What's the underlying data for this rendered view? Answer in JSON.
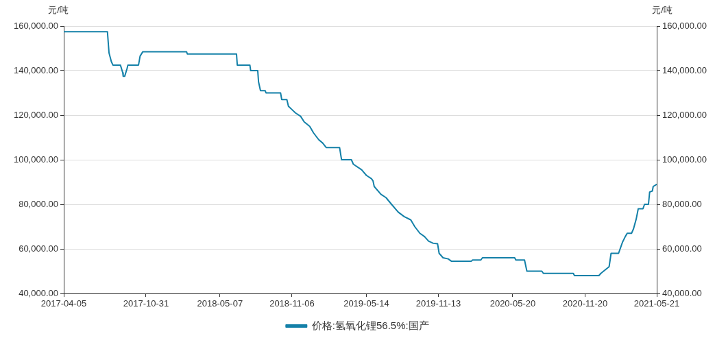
{
  "chart_data": {
    "type": "line",
    "xlabel": null,
    "ylabel": "元/吨",
    "y2label": "元/吨",
    "x": [
      "2017-04-05",
      "2017-07-25",
      "2017-07-29",
      "2017-08-04",
      "2017-08-08",
      "2017-08-27",
      "2017-09-02",
      "2017-09-03",
      "2017-09-07",
      "2017-09-13",
      "2017-09-15",
      "2017-10-12",
      "2017-10-16",
      "2017-10-23",
      "2018-02-11",
      "2018-02-13",
      "2018-06-18",
      "2018-06-20",
      "2018-07-22",
      "2018-07-24",
      "2018-08-11",
      "2018-08-13",
      "2018-08-14",
      "2018-08-18",
      "2018-08-30",
      "2018-09-01",
      "2018-10-08",
      "2018-10-11",
      "2018-10-24",
      "2018-10-28",
      "2018-11-06",
      "2018-11-15",
      "2018-11-28",
      "2018-12-07",
      "2018-12-21",
      "2018-12-31",
      "2019-01-13",
      "2019-01-23",
      "2019-02-01",
      "2019-03-07",
      "2019-03-12",
      "2019-04-06",
      "2019-04-11",
      "2019-05-02",
      "2019-05-14",
      "2019-05-27",
      "2019-05-31",
      "2019-06-03",
      "2019-06-20",
      "2019-07-03",
      "2019-07-17",
      "2019-08-03",
      "2019-08-18",
      "2019-09-04",
      "2019-09-14",
      "2019-09-27",
      "2019-10-09",
      "2019-10-19",
      "2019-10-31",
      "2019-11-11",
      "2019-11-15",
      "2019-11-25",
      "2019-12-08",
      "2019-12-16",
      "2020-02-05",
      "2020-02-08",
      "2020-02-29",
      "2020-03-04",
      "2020-05-25",
      "2020-05-28",
      "2020-06-19",
      "2020-06-25",
      "2020-08-02",
      "2020-08-06",
      "2020-10-21",
      "2020-10-24",
      "2020-12-25",
      "2020-12-30",
      "2021-01-06",
      "2021-01-13",
      "2021-01-20",
      "2021-01-25",
      "2021-02-13",
      "2021-02-18",
      "2021-02-23",
      "2021-03-02",
      "2021-03-07",
      "2021-03-18",
      "2021-03-23",
      "2021-03-30",
      "2021-04-04",
      "2021-04-16",
      "2021-04-20",
      "2021-04-30",
      "2021-05-03",
      "2021-05-10",
      "2021-05-12",
      "2021-05-21"
    ],
    "series": [
      {
        "name": "价格:氢氧化锂56.5%:国产",
        "color": "#1380a8",
        "values": [
          157500,
          157500,
          148000,
          144000,
          142500,
          142500,
          139000,
          137500,
          137500,
          141000,
          142500,
          142500,
          146500,
          148500,
          148500,
          147500,
          147500,
          142500,
          142500,
          140000,
          140000,
          135000,
          135000,
          131000,
          131000,
          130000,
          130000,
          127000,
          127000,
          124000,
          122500,
          121000,
          119500,
          117000,
          115000,
          112000,
          109000,
          107500,
          105500,
          105500,
          100000,
          100000,
          98000,
          95500,
          93000,
          91500,
          90500,
          88000,
          84500,
          83000,
          80000,
          76500,
          74500,
          73000,
          70000,
          67000,
          65500,
          63500,
          62500,
          62300,
          58000,
          56000,
          55500,
          54500,
          54500,
          55000,
          55000,
          56000,
          56000,
          55000,
          55000,
          50000,
          50000,
          49000,
          49000,
          48000,
          48000,
          49000,
          50000,
          51000,
          52000,
          58000,
          58000,
          60500,
          63000,
          65500,
          67000,
          67000,
          69000,
          73500,
          78000,
          78000,
          80000,
          80000,
          85500,
          86000,
          88000,
          89000
        ]
      }
    ],
    "xlim": [
      "2017-04-05",
      "2021-05-21"
    ],
    "xticks": [
      "2017-04-05",
      "2017-10-31",
      "2018-05-07",
      "2018-11-06",
      "2019-05-14",
      "2019-11-13",
      "2020-05-20",
      "2020-11-20",
      "2021-05-21"
    ],
    "ylim": [
      40000,
      160000
    ],
    "yticks": [
      {
        "value": 40000,
        "label": "40,000.00"
      },
      {
        "value": 60000,
        "label": "60,000.00"
      },
      {
        "value": 80000,
        "label": "80,000.00"
      },
      {
        "value": 100000,
        "label": "100,000.00"
      },
      {
        "value": 120000,
        "label": "120,000.00"
      },
      {
        "value": 140000,
        "label": "140,000.00"
      },
      {
        "value": 160000,
        "label": "160,000.00"
      }
    ],
    "y2lim": [
      40000,
      160000
    ],
    "y2ticks": [
      {
        "value": 40000,
        "label": "40,000.00"
      },
      {
        "value": 60000,
        "label": "60,000.00"
      },
      {
        "value": 80000,
        "label": "80,000.00"
      },
      {
        "value": 100000,
        "label": "100,000.00"
      },
      {
        "value": 120000,
        "label": "120,000.00"
      },
      {
        "value": 140000,
        "label": "140,000.00"
      },
      {
        "value": 160000,
        "label": "160,000.00"
      }
    ],
    "grid": "y",
    "legend": "bottom",
    "marker": "none",
    "line_style": "solid"
  }
}
